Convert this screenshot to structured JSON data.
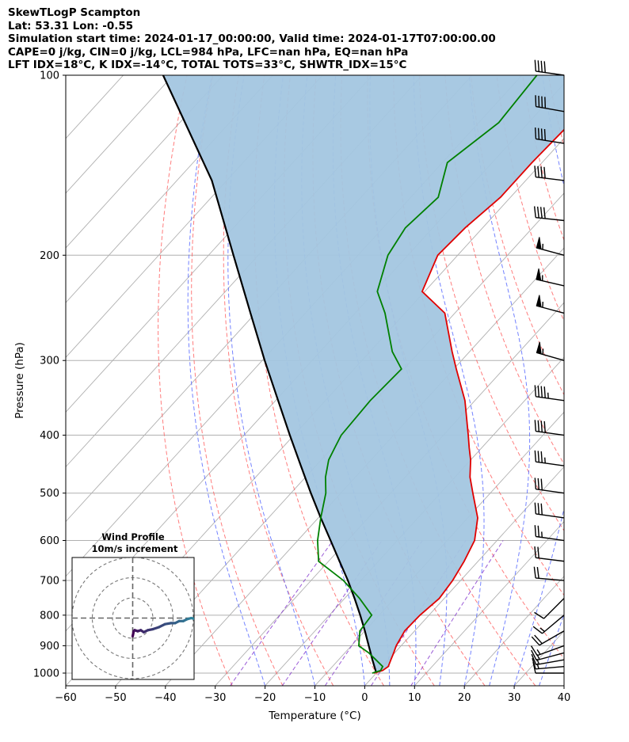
{
  "header": {
    "title": "SkewTLogP Scampton",
    "location": "Lat: 53.31   Lon: -0.55",
    "times": "Simulation start time: 2024-01-17_00:00:00, Valid time: 2024-01-17T07:00:00.00",
    "indices_1": "CAPE=0 j/kg, CIN=0 j/kg, LCL=984 hPa, LFC=nan hPa, EQ=nan hPa",
    "indices_2": "LFT IDX=18°C, K IDX=-14°C, TOTAL TOTS=33°C, SHWTR_IDX=15°C"
  },
  "chart_data": {
    "type": "line",
    "xlabel": "Temperature (°C)",
    "ylabel": "Pressure (hPa)",
    "xlim": [
      -60,
      40
    ],
    "ylim": [
      1050,
      100
    ],
    "y_scale": "log",
    "x_ticks": [
      -60,
      -50,
      -40,
      -30,
      -20,
      -10,
      0,
      10,
      20,
      30,
      40
    ],
    "x_tick_labels": [
      "−60",
      "−50",
      "−40",
      "−30",
      "−20",
      "−10",
      "0",
      "10",
      "20",
      "30",
      "40"
    ],
    "y_ticks": [
      100,
      200,
      300,
      400,
      500,
      600,
      700,
      800,
      900,
      1000
    ],
    "grid": true,
    "colors": {
      "temperature": "#e00000",
      "dewpoint": "#008000",
      "parcel": "#000000",
      "fill": "#a3c6e0",
      "isotherm": "#b0b0b0",
      "dry_adiabat": "#ff6666",
      "moist_adiabat": "#5a6cff",
      "mixing_ratio": "#8a3fd0"
    },
    "series": [
      {
        "key": "temperature",
        "pressure": [
          1000,
          990,
          975,
          950,
          925,
          900,
          850,
          800,
          750,
          700,
          650,
          600,
          550,
          500,
          470,
          440,
          420,
          400,
          350,
          310,
          290,
          250,
          230,
          200,
          180,
          160,
          140,
          120,
          100
        ],
        "values": [
          -0.5,
          0.8,
          1.2,
          0.5,
          -0.2,
          -1.0,
          -2.0,
          -1.8,
          -1.0,
          -1.6,
          -2.8,
          -4.5,
          -8.0,
          -13.5,
          -17.0,
          -20.0,
          -22.5,
          -25.0,
          -32.0,
          -39.5,
          -43.5,
          -52.0,
          -60.5,
          -64.0,
          -63.5,
          -62.0,
          -62.0,
          -61.5,
          -62.0
        ]
      },
      {
        "key": "dewpoint",
        "pressure": [
          1000,
          990,
          975,
          950,
          925,
          900,
          850,
          800,
          750,
          700,
          650,
          600,
          550,
          500,
          470,
          440,
          420,
          400,
          350,
          310,
          290,
          250,
          230,
          200,
          180,
          160,
          140,
          120,
          100
        ],
        "values": [
          -0.8,
          0.4,
          0.1,
          -2.5,
          -5.2,
          -8.5,
          -11.0,
          -11.5,
          -17.0,
          -23.5,
          -32.0,
          -36.0,
          -39.5,
          -43.0,
          -46.0,
          -48.5,
          -49.5,
          -50.5,
          -51.0,
          -50.5,
          -55.5,
          -64.0,
          -69.5,
          -74.0,
          -75.5,
          -74.5,
          -79.0,
          -76.0,
          -77.0
        ]
      },
      {
        "key": "parcel",
        "pressure": [
          1000,
          984,
          950,
          900,
          850,
          800,
          750,
          700,
          650,
          600,
          550,
          500,
          450,
          400,
          350,
          300,
          250,
          200,
          150,
          100
        ],
        "values": [
          0.0,
          -1.0,
          -3.2,
          -6.5,
          -10.0,
          -13.8,
          -18.0,
          -22.6,
          -27.8,
          -33.4,
          -39.5,
          -46.0,
          -53.0,
          -60.8,
          -69.5,
          -79.5,
          -91.0,
          -105.0,
          -123.0,
          -152.0
        ]
      }
    ],
    "wind_barbs": {
      "pressure": [
        1000,
        975,
        950,
        925,
        900,
        850,
        800,
        750,
        700,
        650,
        600,
        550,
        500,
        450,
        400,
        350,
        300,
        250,
        225,
        200,
        175,
        150,
        130,
        115,
        100
      ],
      "speed_kt": [
        10,
        13,
        15,
        16,
        17,
        18,
        15,
        12,
        20,
        20,
        25,
        30,
        30,
        35,
        40,
        45,
        55,
        55,
        55,
        55,
        40,
        40,
        40,
        40,
        40
      ],
      "direction_deg": [
        270,
        265,
        260,
        255,
        250,
        240,
        230,
        225,
        275,
        277,
        278,
        278,
        278,
        278,
        278,
        278,
        286,
        285,
        283,
        285,
        276,
        277,
        279,
        280,
        278
      ]
    },
    "hodograph": {
      "title": "Wind Profile",
      "subtitle": "10m/s increment",
      "rings_ms": [
        10,
        20,
        30
      ],
      "u_ms": [
        0.0,
        0.5,
        1.0,
        2.5,
        4.0,
        5.5,
        7.5,
        10.0,
        13.0,
        16.0,
        19.0,
        21.0,
        23.0,
        25.0,
        27.0,
        29.0,
        31.0,
        33.0
      ],
      "v_ms": [
        -9.0,
        -6.5,
        -6.0,
        -6.5,
        -6.0,
        -7.0,
        -6.0,
        -5.5,
        -4.5,
        -3.0,
        -2.5,
        -2.5,
        -1.5,
        -1.5,
        -0.5,
        0.0,
        -0.5,
        0.5
      ]
    }
  }
}
